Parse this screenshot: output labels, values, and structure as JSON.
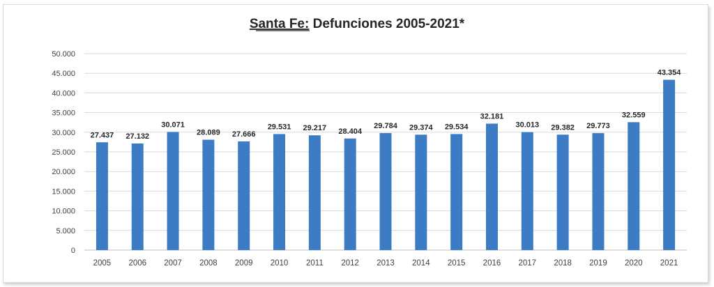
{
  "chart_data": {
    "type": "bar",
    "title_underlined": "Santa Fe:",
    "title_rest": " Defunciones 2005-2021*",
    "categories": [
      "2005",
      "2006",
      "2007",
      "2008",
      "2009",
      "2010",
      "2011",
      "2012",
      "2013",
      "2014",
      "2015",
      "2016",
      "2017",
      "2018",
      "2019",
      "2020",
      "2021"
    ],
    "values": [
      27437,
      27132,
      30071,
      28089,
      27666,
      29531,
      29217,
      28404,
      29784,
      29374,
      29534,
      32181,
      30013,
      29382,
      29773,
      32559,
      43354
    ],
    "data_labels": [
      "27.437",
      "27.132",
      "30.071",
      "28.089",
      "27.666",
      "29.531",
      "29.217",
      "28.404",
      "29.784",
      "29.374",
      "29.534",
      "32.181",
      "30.013",
      "29.382",
      "29.773",
      "32.559",
      "43.354"
    ],
    "y_ticks": [
      0,
      5000,
      10000,
      15000,
      20000,
      25000,
      30000,
      35000,
      40000,
      45000,
      50000
    ],
    "y_tick_labels": [
      "0",
      "5.000",
      "10.000",
      "15.000",
      "20.000",
      "25.000",
      "30.000",
      "35.000",
      "40.000",
      "45.000",
      "50.000"
    ],
    "ylim": [
      0,
      50000
    ],
    "grid": true,
    "bar_color": "#3B7CC4",
    "grid_color": "#d9d9d9"
  }
}
